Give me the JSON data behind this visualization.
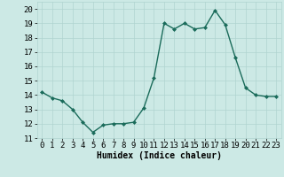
{
  "x": [
    0,
    1,
    2,
    3,
    4,
    5,
    6,
    7,
    8,
    9,
    10,
    11,
    12,
    13,
    14,
    15,
    16,
    17,
    18,
    19,
    20,
    21,
    22,
    23
  ],
  "y": [
    14.2,
    13.8,
    13.6,
    13.0,
    12.1,
    11.4,
    11.9,
    12.0,
    12.0,
    12.1,
    13.1,
    15.2,
    19.0,
    18.6,
    19.0,
    18.6,
    18.7,
    19.9,
    18.9,
    16.6,
    14.5,
    14.0,
    13.9,
    13.9
  ],
  "line_color": "#1a6b5a",
  "marker": "D",
  "marker_size": 2.0,
  "line_width": 1.0,
  "bg_color": "#cce9e5",
  "grid_color": "#b0d4d0",
  "xlabel": "Humidex (Indice chaleur)",
  "xlabel_fontsize": 7,
  "xlim": [
    -0.5,
    23.5
  ],
  "ylim": [
    11,
    20.5
  ],
  "yticks": [
    11,
    12,
    13,
    14,
    15,
    16,
    17,
    18,
    19,
    20
  ],
  "xticks": [
    0,
    1,
    2,
    3,
    4,
    5,
    6,
    7,
    8,
    9,
    10,
    11,
    12,
    13,
    14,
    15,
    16,
    17,
    18,
    19,
    20,
    21,
    22,
    23
  ],
  "tick_fontsize": 6.5
}
